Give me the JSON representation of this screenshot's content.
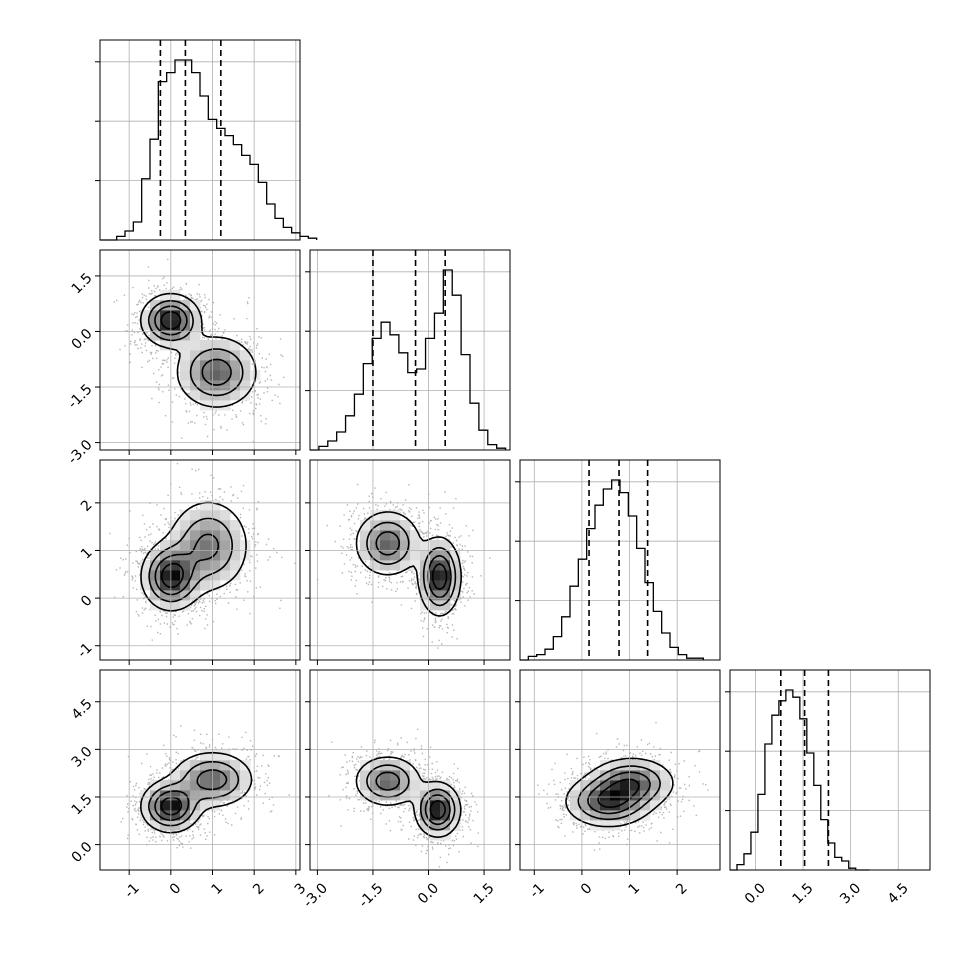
{
  "chart_data": {
    "type": "corner",
    "grid": true,
    "variables": [
      {
        "range": [
          -1.7,
          3.1
        ],
        "ticks": [
          "-1",
          "0",
          "1",
          "2",
          "3"
        ],
        "tick_values": [
          -1,
          0,
          1,
          2,
          3
        ],
        "quantiles": [
          -0.25,
          0.35,
          1.2
        ]
      },
      {
        "range": [
          -3.2,
          2.2
        ],
        "ticks": [
          "-3.0",
          "-1.5",
          "0.0",
          "1.5"
        ],
        "tick_values": [
          -3.0,
          -1.5,
          0.0,
          1.5
        ],
        "quantiles": [
          -1.5,
          -0.35,
          0.45
        ]
      },
      {
        "range": [
          -1.3,
          2.9
        ],
        "ticks": [
          "-1",
          "0",
          "1",
          "2"
        ],
        "tick_values": [
          -1,
          0,
          1,
          2
        ],
        "quantiles": [
          0.15,
          0.78,
          1.38
        ]
      },
      {
        "range": [
          -0.8,
          5.5
        ],
        "ticks": [
          "0.0",
          "1.5",
          "3.0",
          "4.5"
        ],
        "tick_values": [
          0.0,
          1.5,
          3.0,
          4.5
        ],
        "quantiles": [
          0.8,
          1.55,
          2.3
        ]
      }
    ],
    "histograms": [
      {
        "var": 0,
        "bin_start": -1.7,
        "bin_width": 0.2,
        "counts": [
          0,
          0,
          0.02,
          0.05,
          0.1,
          0.34,
          0.56,
          0.88,
          0.93,
          1.0,
          1.0,
          0.93,
          0.8,
          0.67,
          0.62,
          0.58,
          0.53,
          0.47,
          0.42,
          0.32,
          0.2,
          0.12,
          0.07,
          0.04,
          0.02,
          0.01
        ]
      },
      {
        "var": 1,
        "bin_start": -3.2,
        "bin_width": 0.24,
        "counts": [
          0,
          0.02,
          0.05,
          0.1,
          0.19,
          0.31,
          0.48,
          0.62,
          0.71,
          0.64,
          0.54,
          0.43,
          0.45,
          0.62,
          0.76,
          1.0,
          0.86,
          0.53,
          0.26,
          0.11,
          0.03,
          0.01
        ]
      },
      {
        "var": 2,
        "bin_start": -1.3,
        "bin_width": 0.175,
        "counts": [
          0,
          0.02,
          0.03,
          0.06,
          0.13,
          0.24,
          0.41,
          0.56,
          0.73,
          0.86,
          0.95,
          1.0,
          0.93,
          0.8,
          0.62,
          0.43,
          0.27,
          0.15,
          0.07,
          0.03,
          0.01,
          0.01
        ]
      },
      {
        "var": 3,
        "bin_start": -0.8,
        "bin_width": 0.22,
        "counts": [
          0,
          0.03,
          0.09,
          0.21,
          0.42,
          0.7,
          0.86,
          0.94,
          1.0,
          0.96,
          0.84,
          0.65,
          0.47,
          0.28,
          0.15,
          0.07,
          0.05,
          0.01,
          0,
          0
        ]
      }
    ],
    "pairs": [
      {
        "x": 0,
        "y": 1,
        "components": [
          {
            "mx": 0.0,
            "my": 0.3,
            "sx": 0.35,
            "sy": 0.35,
            "w": 1.0
          },
          {
            "mx": 1.1,
            "my": -1.1,
            "sx": 0.5,
            "sy": 0.5,
            "w": 0.7
          }
        ]
      },
      {
        "x": 0,
        "y": 2,
        "components": [
          {
            "mx": 0.0,
            "my": 0.45,
            "sx": 0.35,
            "sy": 0.35,
            "w": 1.0
          },
          {
            "mx": 0.9,
            "my": 1.1,
            "sx": 0.5,
            "sy": 0.5,
            "w": 0.65
          }
        ]
      },
      {
        "x": 1,
        "y": 2,
        "components": [
          {
            "mx": -1.1,
            "my": 1.15,
            "sx": 0.45,
            "sy": 0.35,
            "w": 0.7
          },
          {
            "mx": 0.3,
            "my": 0.45,
            "sx": 0.28,
            "sy": 0.4,
            "w": 1.0
          }
        ]
      },
      {
        "x": 0,
        "y": 3,
        "components": [
          {
            "mx": 0.0,
            "my": 1.2,
            "sx": 0.35,
            "sy": 0.4,
            "w": 1.0
          },
          {
            "mx": 1.0,
            "my": 2.05,
            "sx": 0.5,
            "sy": 0.45,
            "w": 0.7
          }
        ]
      },
      {
        "x": 1,
        "y": 3,
        "components": [
          {
            "mx": -1.1,
            "my": 2.0,
            "sx": 0.45,
            "sy": 0.4,
            "w": 0.7
          },
          {
            "mx": 0.25,
            "my": 1.1,
            "sx": 0.3,
            "sy": 0.42,
            "w": 1.0
          }
        ]
      },
      {
        "x": 2,
        "y": 3,
        "components": [
          {
            "mx": 0.55,
            "my": 1.35,
            "sx": 0.45,
            "sy": 0.4,
            "w": 1.0
          },
          {
            "mx": 1.05,
            "my": 1.95,
            "sx": 0.45,
            "sy": 0.4,
            "w": 0.9
          }
        ]
      }
    ]
  }
}
